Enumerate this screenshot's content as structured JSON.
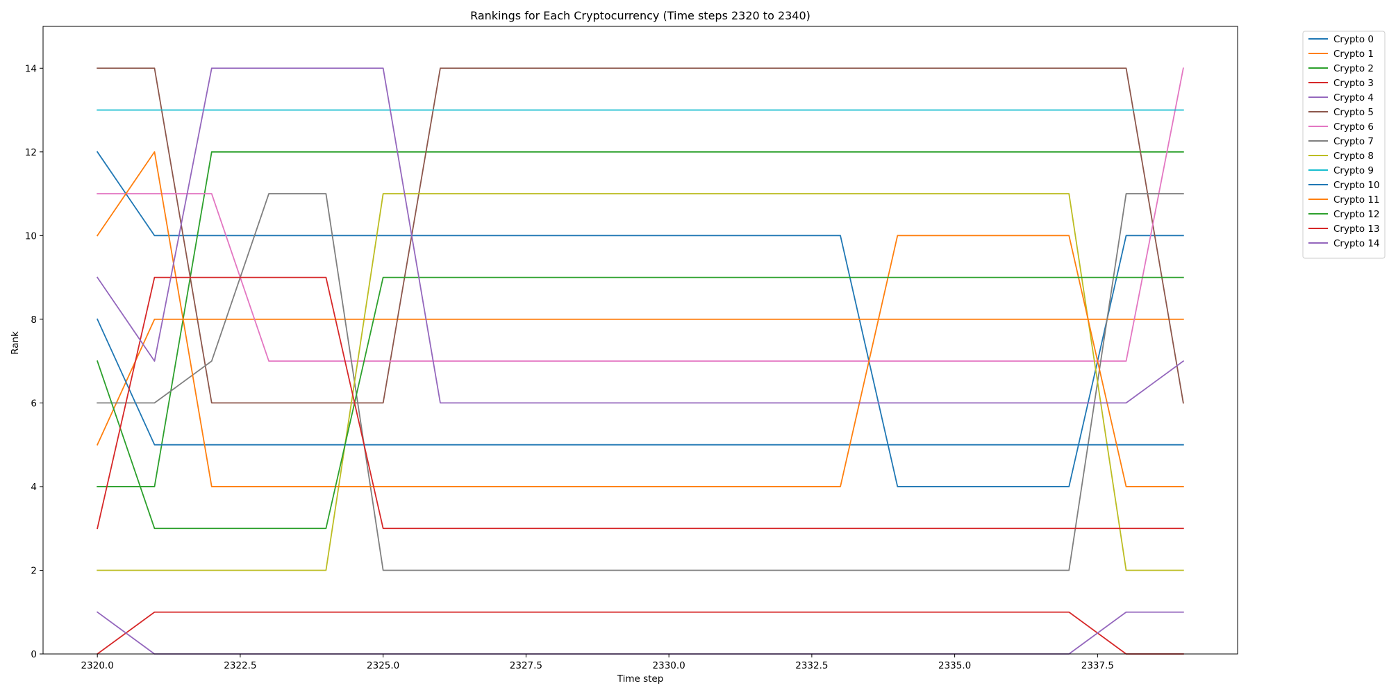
{
  "chart_data": {
    "type": "line",
    "title": "Rankings for Each Cryptocurrency (Time steps 2320 to 2340)",
    "xlabel": "Time step",
    "ylabel": "Rank",
    "xlim": [
      2319.05,
      2339.95
    ],
    "ylim": [
      0,
      15
    ],
    "x_ticks": [
      2320.0,
      2322.5,
      2325.0,
      2327.5,
      2330.0,
      2332.5,
      2335.0,
      2337.5
    ],
    "x_tick_labels": [
      "2320.0",
      "2322.5",
      "2325.0",
      "2327.5",
      "2330.0",
      "2332.5",
      "2335.0",
      "2337.5"
    ],
    "y_ticks": [
      0,
      2,
      4,
      6,
      8,
      10,
      12,
      14
    ],
    "y_tick_labels": [
      "0",
      "2",
      "4",
      "6",
      "8",
      "10",
      "12",
      "14"
    ],
    "grid": false,
    "legend_position": "outside-top-right",
    "x": [
      2320,
      2321,
      2322,
      2323,
      2324,
      2325,
      2326,
      2327,
      2328,
      2329,
      2330,
      2331,
      2332,
      2333,
      2334,
      2335,
      2336,
      2337,
      2338,
      2339
    ],
    "series": [
      {
        "name": "Crypto 0",
        "color": "#1f77b4",
        "values": [
          12,
          10,
          10,
          10,
          10,
          10,
          10,
          10,
          10,
          10,
          10,
          10,
          10,
          10,
          4,
          4,
          4,
          4,
          10,
          10
        ]
      },
      {
        "name": "Crypto 1",
        "color": "#ff7f0e",
        "values": [
          5,
          8,
          8,
          8,
          8,
          8,
          8,
          8,
          8,
          8,
          8,
          8,
          8,
          8,
          8,
          8,
          8,
          8,
          8,
          8
        ]
      },
      {
        "name": "Crypto 2",
        "color": "#2ca02c",
        "values": [
          4,
          4,
          12,
          12,
          12,
          12,
          12,
          12,
          12,
          12,
          12,
          12,
          12,
          12,
          12,
          12,
          12,
          12,
          12,
          12
        ]
      },
      {
        "name": "Crypto 3",
        "color": "#d62728",
        "values": [
          0,
          1,
          1,
          1,
          1,
          1,
          1,
          1,
          1,
          1,
          1,
          1,
          1,
          1,
          1,
          1,
          1,
          1,
          0,
          0
        ]
      },
      {
        "name": "Crypto 4",
        "color": "#9467bd",
        "values": [
          1,
          0,
          0,
          0,
          0,
          0,
          0,
          0,
          0,
          0,
          0,
          0,
          0,
          0,
          0,
          0,
          0,
          0,
          1,
          1
        ]
      },
      {
        "name": "Crypto 5",
        "color": "#8c564b",
        "values": [
          14,
          14,
          6,
          6,
          6,
          6,
          14,
          14,
          14,
          14,
          14,
          14,
          14,
          14,
          14,
          14,
          14,
          14,
          14,
          6
        ]
      },
      {
        "name": "Crypto 6",
        "color": "#e377c2",
        "values": [
          11,
          11,
          11,
          7,
          7,
          7,
          7,
          7,
          7,
          7,
          7,
          7,
          7,
          7,
          7,
          7,
          7,
          7,
          7,
          14
        ]
      },
      {
        "name": "Crypto 7",
        "color": "#7f7f7f",
        "values": [
          6,
          6,
          7,
          11,
          11,
          2,
          2,
          2,
          2,
          2,
          2,
          2,
          2,
          2,
          2,
          2,
          2,
          2,
          11,
          11
        ]
      },
      {
        "name": "Crypto 8",
        "color": "#bcbd22",
        "values": [
          2,
          2,
          2,
          2,
          2,
          11,
          11,
          11,
          11,
          11,
          11,
          11,
          11,
          11,
          11,
          11,
          11,
          11,
          2,
          2
        ]
      },
      {
        "name": "Crypto 9",
        "color": "#17becf",
        "values": [
          13,
          13,
          13,
          13,
          13,
          13,
          13,
          13,
          13,
          13,
          13,
          13,
          13,
          13,
          13,
          13,
          13,
          13,
          13,
          13
        ]
      },
      {
        "name": "Crypto 10",
        "color": "#1f77b4",
        "values": [
          8,
          5,
          5,
          5,
          5,
          5,
          5,
          5,
          5,
          5,
          5,
          5,
          5,
          5,
          5,
          5,
          5,
          5,
          5,
          5
        ]
      },
      {
        "name": "Crypto 11",
        "color": "#ff7f0e",
        "values": [
          10,
          12,
          4,
          4,
          4,
          4,
          4,
          4,
          4,
          4,
          4,
          4,
          4,
          4,
          10,
          10,
          10,
          10,
          4,
          4
        ]
      },
      {
        "name": "Crypto 12",
        "color": "#2ca02c",
        "values": [
          7,
          3,
          3,
          3,
          3,
          9,
          9,
          9,
          9,
          9,
          9,
          9,
          9,
          9,
          9,
          9,
          9,
          9,
          9,
          9
        ]
      },
      {
        "name": "Crypto 13",
        "color": "#d62728",
        "values": [
          3,
          9,
          9,
          9,
          9,
          3,
          3,
          3,
          3,
          3,
          3,
          3,
          3,
          3,
          3,
          3,
          3,
          3,
          3,
          3
        ]
      },
      {
        "name": "Crypto 14",
        "color": "#9467bd",
        "values": [
          9,
          7,
          14,
          14,
          14,
          14,
          6,
          6,
          6,
          6,
          6,
          6,
          6,
          6,
          6,
          6,
          6,
          6,
          6,
          7
        ]
      }
    ]
  }
}
